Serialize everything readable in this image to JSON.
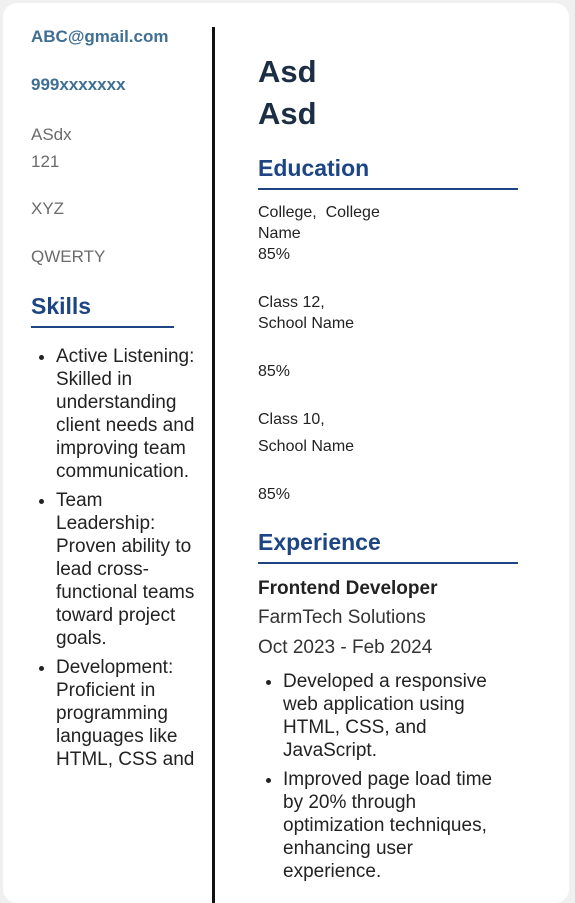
{
  "contact": {
    "email": "ABC@gmail.com",
    "phone": "999xxxxxxx",
    "address_line1": "ASdx",
    "address_line2": "121",
    "city": "XYZ",
    "state": "QWERTY"
  },
  "skills": {
    "heading": "Skills",
    "items": [
      "Active Listening: Skilled in understanding client needs and improving team communication.",
      "Team Leadership: Proven ability to lead cross-functional teams toward project goals.",
      "Development: Proficient in programming languages like HTML, CSS and"
    ]
  },
  "profile": {
    "first_name": "Asd",
    "last_name": "Asd"
  },
  "education": {
    "heading": "Education",
    "college": {
      "line1": "College,  College",
      "line2": "Name",
      "score": "85%"
    },
    "class12": {
      "line1": "Class 12,",
      "line2": "School Name",
      "score": "85%"
    },
    "class10": {
      "line1": "Class 10,",
      "line2": "School Name",
      "score": "85%"
    }
  },
  "experience": {
    "heading": "Experience",
    "job_title": "Frontend Developer",
    "company": "FarmTech Solutions",
    "dates": "Oct 2023 - Feb 2024",
    "points": [
      "Developed a responsive web application using HTML, CSS, and JavaScript.",
      "Improved page load time by 20% through optimization techniques, enhancing user experience."
    ]
  }
}
